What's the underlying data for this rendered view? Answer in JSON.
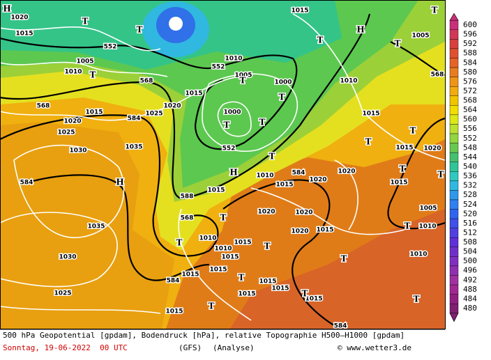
{
  "map_labels": [
    "552",
    "552",
    "552",
    "568",
    "568",
    "584",
    "584",
    "588",
    "568",
    "584",
    "584",
    "584",
    "568",
    "1020",
    "1015",
    "1005",
    "1010",
    "1015",
    "1020",
    "1025",
    "1030",
    "1035",
    "1035",
    "1030",
    "1025",
    "1025",
    "1020",
    "1015",
    "1010",
    "1005",
    "1000",
    "1000",
    "1010",
    "1015",
    "1005",
    "1015",
    "1010",
    "1015",
    "1015",
    "1020",
    "1020",
    "1020",
    "1020",
    "1020",
    "1015",
    "1010",
    "1010",
    "1015",
    "1015",
    "1015",
    "1015",
    "1015",
    "1015",
    "1015",
    "1015",
    "1015",
    "1010",
    "1010",
    "1015",
    "1015",
    "1020",
    "1005",
    "H",
    "T",
    "T",
    "H",
    "T",
    "T",
    "T",
    "T",
    "T",
    "T",
    "T",
    "T",
    "T",
    "H",
    "H",
    "T",
    "T",
    "T",
    "T",
    "T",
    "T",
    "T",
    "T",
    "T",
    "T",
    "T",
    "T",
    "T"
  ],
  "legend": {
    "levels": [
      600,
      596,
      592,
      588,
      584,
      580,
      576,
      572,
      568,
      564,
      560,
      556,
      552,
      548,
      544,
      540,
      536,
      532,
      528,
      524,
      520,
      516,
      512,
      508,
      504,
      500,
      496,
      492,
      488,
      484,
      480
    ],
    "colors": [
      "#c8307a",
      "#d03858",
      "#d84040",
      "#e05030",
      "#e46428",
      "#e87c20",
      "#ee9418",
      "#f0ac10",
      "#f2c400",
      "#f2de00",
      "#dce818",
      "#bce030",
      "#94d440",
      "#68c850",
      "#44c070",
      "#30c498",
      "#30c8c0",
      "#30b8e0",
      "#3098e8",
      "#3080f0",
      "#3064f0",
      "#4050e8",
      "#5040e0",
      "#6030d8",
      "#7030c8",
      "#8030c0",
      "#9030b0",
      "#a030a0",
      "#a02890",
      "#902080",
      "#802070"
    ]
  },
  "footer": {
    "caption": "500 hPa Geopotential [gpdam], Bodendruck [hPa], relative Topographie H500–H1000 [gpdam]",
    "date": "Sonntag, 19-06-2022  00 UTC",
    "model": "(GFS)",
    "run": "(Analyse)",
    "credit": "© www.wetter3.de"
  }
}
